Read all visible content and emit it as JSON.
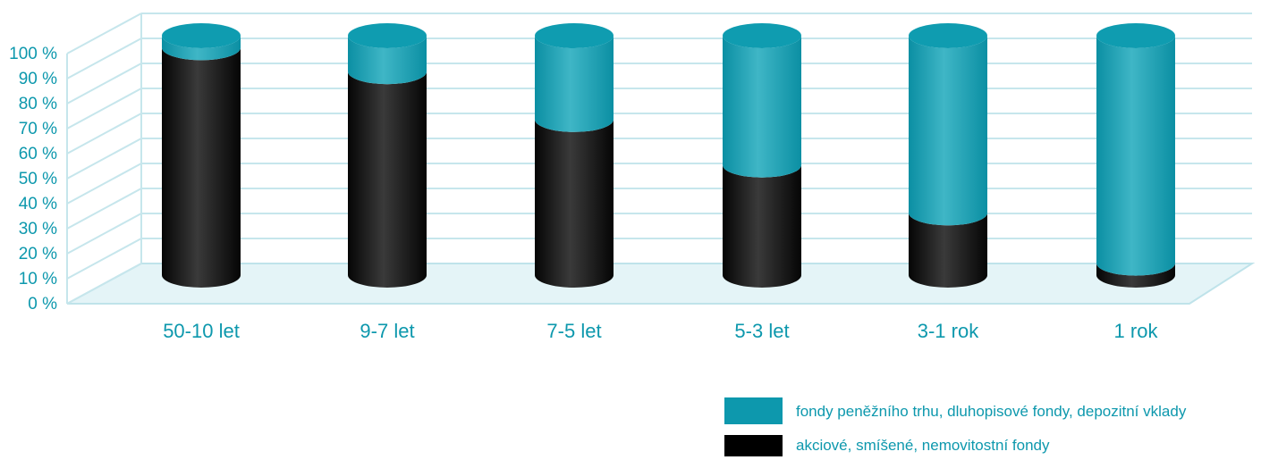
{
  "chart_data": {
    "type": "bar",
    "stacked": true,
    "categories": [
      "50-10 let",
      "9-7 let",
      "7-5 let",
      "5-3 let",
      "3-1 rok",
      "1 rok"
    ],
    "series": [
      {
        "name": "akciové, smíšené, nemovitostní fondy",
        "values": [
          95,
          85,
          65,
          46,
          26,
          5
        ],
        "color": "#141414"
      },
      {
        "name": "fondy peněžního trhu, dluhopisové fondy, depozitní vklady",
        "values": [
          5,
          15,
          35,
          54,
          74,
          95
        ],
        "color": "#159fb3"
      }
    ],
    "ylim": [
      0,
      100
    ],
    "yticks": [
      "0 %",
      "10 %",
      "20 %",
      "30 %",
      "40 %",
      "50 %",
      "60 %",
      "70 %",
      "80 %",
      "90 %",
      "100 %"
    ],
    "grid": true,
    "legend_position": "bottom-right",
    "title": "",
    "xlabel": "",
    "ylabel": ""
  }
}
